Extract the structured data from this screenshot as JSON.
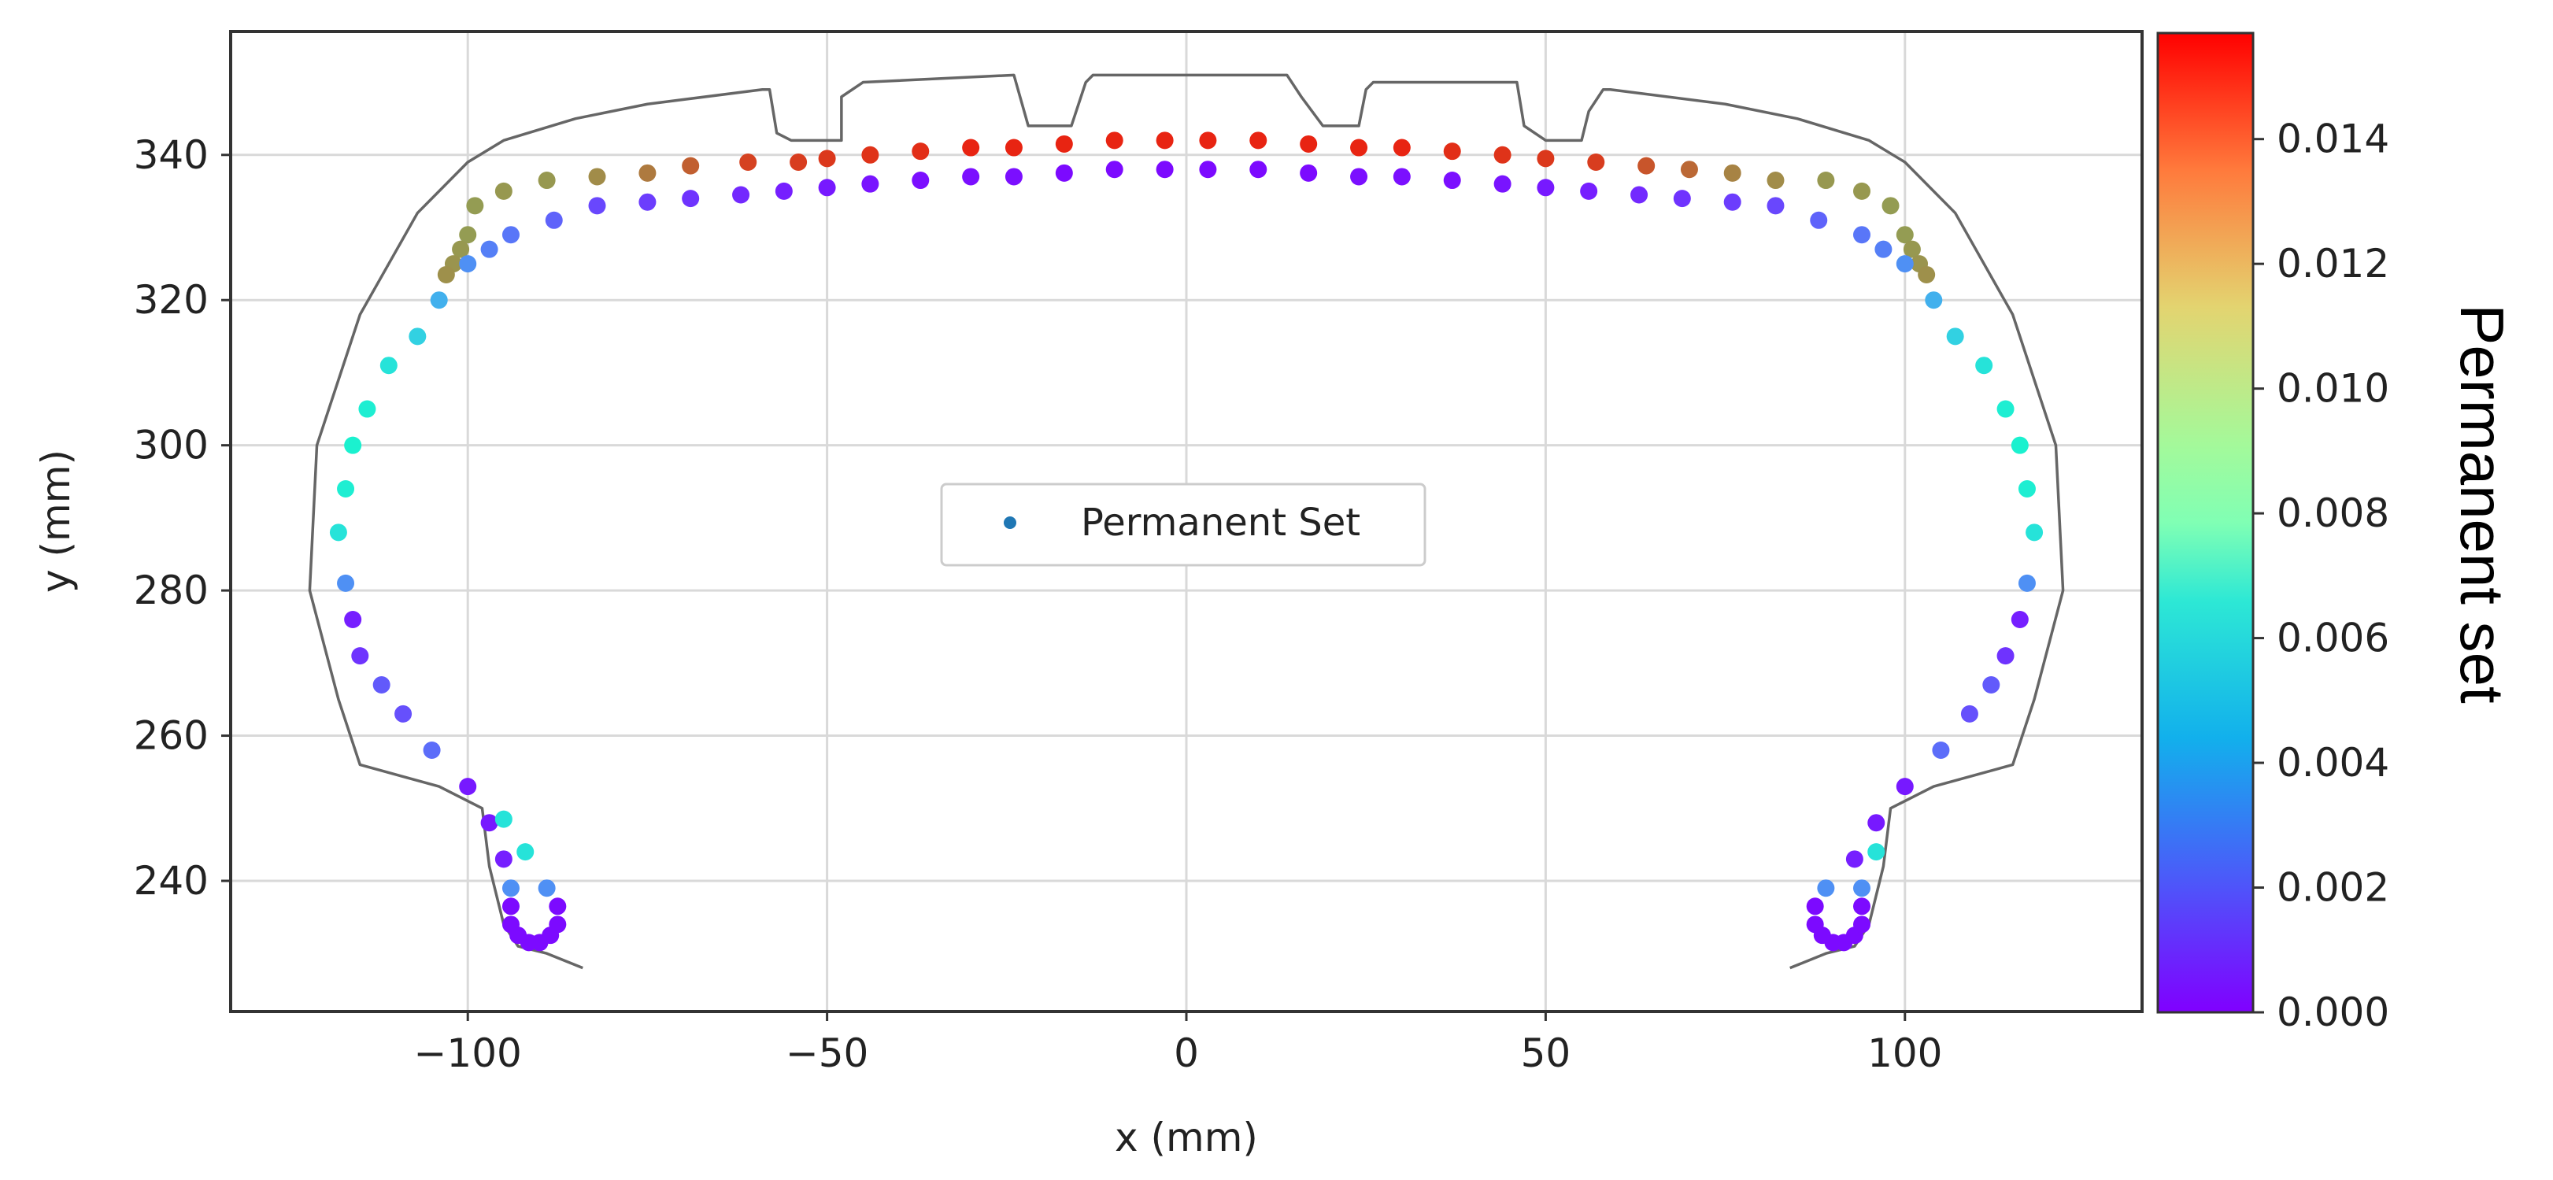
{
  "chart_data": {
    "type": "scatter",
    "title": "",
    "xlabel": "x (mm)",
    "ylabel": "y (mm)",
    "xlim": [
      -133,
      133
    ],
    "ylim": [
      222,
      357
    ],
    "xticks": [
      -100,
      -50,
      0,
      50,
      100
    ],
    "xtick_labels": [
      "−100",
      "−50",
      "0",
      "50",
      "100"
    ],
    "yticks": [
      240,
      260,
      280,
      300,
      320,
      340
    ],
    "ytick_labels": [
      "240",
      "260",
      "280",
      "300",
      "320",
      "340"
    ],
    "grid": true,
    "legend": {
      "entries": [
        "Permanent Set"
      ],
      "placement": "center"
    },
    "colorbar": {
      "label": "Permanent set",
      "colormap": "rainbow",
      "range": [
        0,
        0.0157
      ],
      "ticks": [
        0,
        0.002,
        0.004,
        0.006,
        0.008,
        0.01,
        0.012,
        0.014
      ],
      "tick_labels": [
        "0.000",
        "0.002",
        "0.004",
        "0.006",
        "0.008",
        "0.010",
        "0.012",
        "0.014"
      ]
    },
    "outline": {
      "color": "#666666",
      "points": [
        [
          -84,
          228
        ],
        [
          -89,
          230
        ],
        [
          -93,
          231
        ],
        [
          -95,
          234
        ],
        [
          -97,
          242
        ],
        [
          -98,
          250
        ],
        [
          -104,
          253
        ],
        [
          -115,
          256
        ],
        [
          -118,
          265
        ],
        [
          -122,
          280
        ],
        [
          -121,
          300
        ],
        [
          -115,
          318
        ],
        [
          -107,
          332
        ],
        [
          -100,
          339
        ],
        [
          -95,
          342
        ],
        [
          -85,
          345
        ],
        [
          -75,
          347
        ],
        [
          -59,
          349
        ],
        [
          -58,
          349
        ],
        [
          -57,
          343
        ],
        [
          -55,
          342
        ],
        [
          -48,
          342
        ],
        [
          -48,
          348
        ],
        [
          -45,
          350
        ],
        [
          -24,
          351
        ],
        [
          -22,
          344
        ],
        [
          -16,
          344
        ],
        [
          -14,
          350
        ],
        [
          -13,
          351
        ],
        [
          14,
          351
        ],
        [
          16,
          348
        ],
        [
          19,
          344
        ],
        [
          24,
          344
        ],
        [
          25,
          349
        ],
        [
          26,
          350
        ],
        [
          46,
          350
        ],
        [
          47,
          344
        ],
        [
          50,
          342
        ],
        [
          55,
          342
        ],
        [
          56,
          346
        ],
        [
          58,
          349
        ],
        [
          59,
          349
        ],
        [
          75,
          347
        ],
        [
          85,
          345
        ],
        [
          95,
          342
        ],
        [
          100,
          339
        ],
        [
          107,
          332
        ],
        [
          115,
          318
        ],
        [
          121,
          300
        ],
        [
          122,
          280
        ],
        [
          118,
          265
        ],
        [
          115,
          256
        ],
        [
          104,
          253
        ],
        [
          98,
          250
        ],
        [
          97,
          242
        ],
        [
          95,
          234
        ],
        [
          93,
          231
        ],
        [
          89,
          230
        ],
        [
          84,
          228
        ]
      ]
    },
    "series": [
      {
        "name": "Permanent Set",
        "points": [
          [
            -3,
            342,
            0.015
          ],
          [
            3,
            342,
            0.015
          ],
          [
            -10,
            342,
            0.015
          ],
          [
            10,
            342,
            0.015
          ],
          [
            -17,
            341.5,
            0.015
          ],
          [
            17,
            341.5,
            0.015
          ],
          [
            -24,
            341,
            0.015
          ],
          [
            24,
            341,
            0.015
          ],
          [
            -30,
            341,
            0.015
          ],
          [
            30,
            341,
            0.015
          ],
          [
            -37,
            340.5,
            0.0148
          ],
          [
            37,
            340.5,
            0.0148
          ],
          [
            -44,
            340,
            0.0147
          ],
          [
            44,
            340,
            0.0147
          ],
          [
            -50,
            339.5,
            0.0146
          ],
          [
            50,
            339.5,
            0.0146
          ],
          [
            -54,
            339,
            0.0145
          ],
          [
            57,
            339,
            0.0145
          ],
          [
            -61,
            339,
            0.0144
          ],
          [
            64,
            338.5,
            0.014
          ],
          [
            -69,
            338.5,
            0.0138
          ],
          [
            70,
            338,
            0.0136
          ],
          [
            -75,
            337.5,
            0.0132
          ],
          [
            76,
            337.5,
            0.013
          ],
          [
            -82,
            337,
            0.0128
          ],
          [
            82,
            336.5,
            0.0128
          ],
          [
            -89,
            336.5,
            0.0125
          ],
          [
            89,
            336.5,
            0.0125
          ],
          [
            -95,
            335,
            0.0125
          ],
          [
            94,
            335,
            0.0125
          ],
          [
            -99,
            333,
            0.0124
          ],
          [
            98,
            333,
            0.0124
          ],
          [
            -100,
            329,
            0.0124
          ],
          [
            100,
            329,
            0.0124
          ],
          [
            -101,
            327,
            0.0125
          ],
          [
            101,
            327,
            0.0125
          ],
          [
            -102,
            325,
            0.0126
          ],
          [
            102,
            325,
            0.0126
          ],
          [
            -103,
            323.5,
            0.0127
          ],
          [
            103,
            323.5,
            0.0127
          ],
          [
            -3,
            338,
            0.0002
          ],
          [
            3,
            338,
            0.0002
          ],
          [
            -10,
            338,
            0.0002
          ],
          [
            10,
            338,
            0.0002
          ],
          [
            -17,
            337.5,
            0.0002
          ],
          [
            17,
            337.5,
            0.0002
          ],
          [
            -24,
            337,
            0.0003
          ],
          [
            24,
            337,
            0.0003
          ],
          [
            -30,
            337,
            0.0003
          ],
          [
            30,
            337,
            0.0003
          ],
          [
            -37,
            336.5,
            0.0003
          ],
          [
            37,
            336.5,
            0.0003
          ],
          [
            -44,
            336,
            0.0004
          ],
          [
            44,
            336,
            0.0004
          ],
          [
            -50,
            335.5,
            0.0005
          ],
          [
            50,
            335.5,
            0.0005
          ],
          [
            -56,
            335,
            0.0006
          ],
          [
            56,
            335,
            0.0006
          ],
          [
            -62,
            334.5,
            0.0008
          ],
          [
            63,
            334.5,
            0.0008
          ],
          [
            -69,
            334,
            0.001
          ],
          [
            69,
            334,
            0.001
          ],
          [
            -75,
            333.5,
            0.0012
          ],
          [
            76,
            333.5,
            0.0012
          ],
          [
            -82,
            333,
            0.0014
          ],
          [
            82,
            333,
            0.0014
          ],
          [
            -88,
            331,
            0.002
          ],
          [
            88,
            331,
            0.002
          ],
          [
            -94,
            329,
            0.0024
          ],
          [
            94,
            329,
            0.0024
          ],
          [
            -97,
            327,
            0.0026
          ],
          [
            97,
            327,
            0.0026
          ],
          [
            -100,
            325,
            0.003
          ],
          [
            100,
            325,
            0.003
          ],
          [
            -104,
            320,
            0.0038
          ],
          [
            104,
            320,
            0.0038
          ],
          [
            -107,
            315,
            0.0048
          ],
          [
            107,
            315,
            0.0048
          ],
          [
            -111,
            311,
            0.0055
          ],
          [
            111,
            311,
            0.0055
          ],
          [
            -114,
            305,
            0.006
          ],
          [
            114,
            305,
            0.006
          ],
          [
            -116,
            300,
            0.0062
          ],
          [
            116,
            300,
            0.0062
          ],
          [
            -117,
            294,
            0.006
          ],
          [
            117,
            294,
            0.006
          ],
          [
            -118,
            288,
            0.0055
          ],
          [
            118,
            288,
            0.0055
          ],
          [
            -117,
            281,
            0.003
          ],
          [
            117,
            281,
            0.003
          ],
          [
            -116,
            276,
            0.0006
          ],
          [
            116,
            276,
            0.0006
          ],
          [
            -115,
            271,
            0.001
          ],
          [
            114,
            271,
            0.001
          ],
          [
            -112,
            267,
            0.0018
          ],
          [
            112,
            267,
            0.0018
          ],
          [
            -109,
            263,
            0.0016
          ],
          [
            109,
            263,
            0.0016
          ],
          [
            -105,
            258,
            0.0022
          ],
          [
            105,
            258,
            0.0022
          ],
          [
            -100,
            253,
            0.0005
          ],
          [
            100,
            253,
            0.0005
          ],
          [
            -97,
            248,
            0.0005
          ],
          [
            96,
            248,
            0.0005
          ],
          [
            -95,
            248.5,
            0.0055
          ],
          [
            96,
            244,
            0.0055
          ],
          [
            -92,
            244,
            0.0055
          ],
          [
            93,
            243,
            0.0006
          ],
          [
            -95,
            243,
            0.0006
          ],
          [
            -89,
            239,
            0.003
          ],
          [
            -94,
            239,
            0.003
          ],
          [
            89,
            239,
            0.003
          ],
          [
            94,
            239,
            0.003
          ],
          [
            -94,
            236.5,
            0.0002
          ],
          [
            -94,
            234,
            0.0002
          ],
          [
            -93,
            232.5,
            0.0002
          ],
          [
            -91.5,
            231.5,
            0.0002
          ],
          [
            -90,
            231.5,
            0.0002
          ],
          [
            -88.5,
            232.5,
            0.0002
          ],
          [
            -87.5,
            234,
            0.0002
          ],
          [
            -87.5,
            236.5,
            0.0002
          ],
          [
            87.5,
            236.5,
            0.0002
          ],
          [
            87.5,
            234,
            0.0002
          ],
          [
            88.5,
            232.5,
            0.0002
          ],
          [
            90,
            231.5,
            0.0002
          ],
          [
            91.5,
            231.5,
            0.0002
          ],
          [
            93,
            232.5,
            0.0002
          ],
          [
            94,
            234,
            0.0002
          ],
          [
            94,
            236.5,
            0.0002
          ]
        ]
      }
    ]
  }
}
